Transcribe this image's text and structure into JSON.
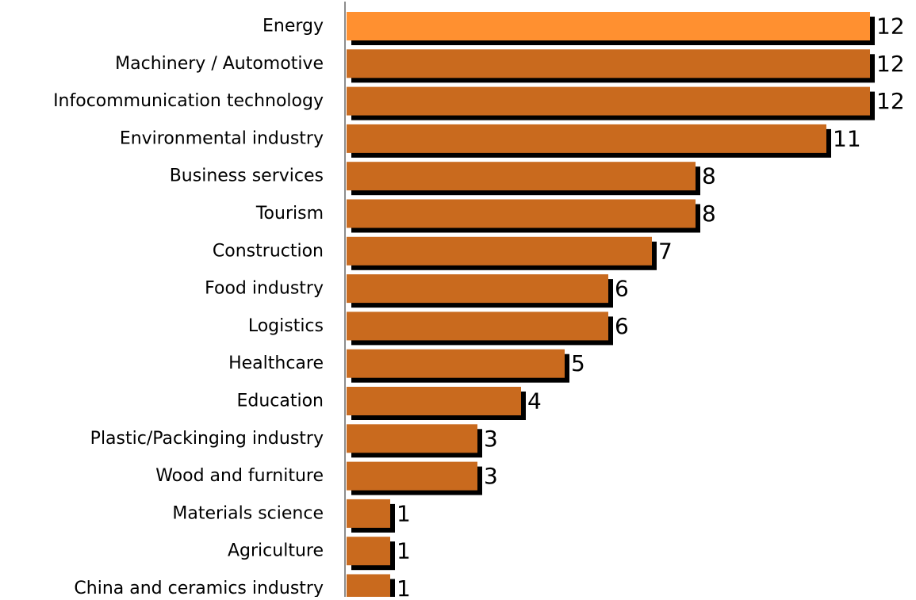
{
  "chart_data": {
    "type": "bar",
    "orientation": "horizontal",
    "categories": [
      "Energy",
      "Machinery / Automotive",
      "Infocommunication technology",
      "Environmental industry",
      "Business services",
      "Tourism",
      "Construction",
      "Food industry",
      "Logistics",
      "Healthcare",
      "Education",
      "Plastic/Packinging industry",
      "Wood and furniture",
      "Materials science",
      "Agriculture",
      "China and ceramics industry"
    ],
    "values": [
      12,
      12,
      12,
      11,
      8,
      8,
      7,
      6,
      6,
      5,
      4,
      3,
      3,
      1,
      1,
      1
    ],
    "data_labels": [
      "12",
      "12",
      "12",
      "11",
      "8",
      "8",
      "7",
      "6",
      "6",
      "5",
      "4",
      "3",
      "3",
      "1",
      "1",
      "1"
    ],
    "xlim": [
      0,
      12
    ],
    "grid": false,
    "legend": "none",
    "title": "",
    "xlabel": "",
    "ylabel": "",
    "colors": {
      "highlight": "#FF9030",
      "bar": "#C96A1E",
      "shadow": "#000000",
      "axis": "#8C8C8C"
    }
  }
}
